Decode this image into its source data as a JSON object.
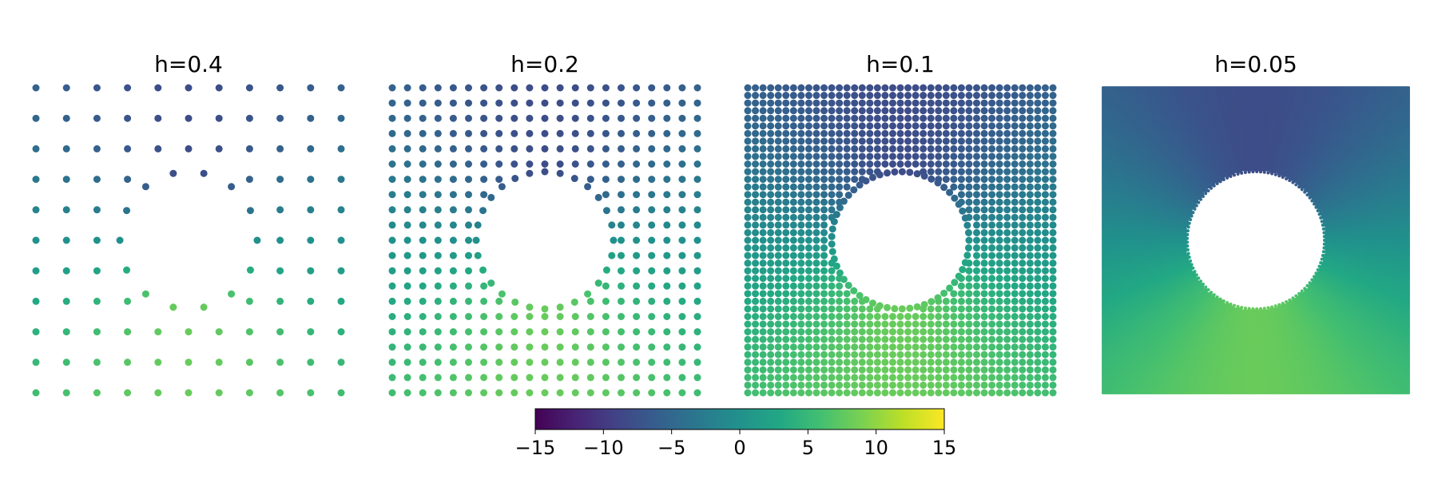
{
  "chart_data": {
    "type": "scatter",
    "colormap": "viridis",
    "color_range": [
      -15,
      15
    ],
    "domain": {
      "x": [
        -1,
        1
      ],
      "y": [
        -1,
        1
      ]
    },
    "hole": {
      "center": [
        0,
        0
      ],
      "radius": 0.45
    },
    "field_model": "value = 8*y/r for points outside the hole (r = distance from center), negative above the hole, positive below",
    "panels": [
      {
        "title": "h=0.4",
        "spacing": 0.2,
        "point_style": "sparse dots"
      },
      {
        "title": "h=0.2",
        "spacing": 0.1,
        "point_style": "dots"
      },
      {
        "title": "h=0.1",
        "spacing": 0.05,
        "point_style": "dense dots"
      },
      {
        "title": "h=0.05",
        "spacing": 0.025,
        "point_style": "continuous"
      }
    ],
    "colorbar": {
      "ticks": [
        -15,
        -10,
        -5,
        0,
        5,
        10,
        15
      ],
      "tick_labels": [
        "−15",
        "−10",
        "−5",
        "0",
        "5",
        "10",
        "15"
      ],
      "orientation": "horizontal",
      "placement": "bottom-center"
    }
  }
}
